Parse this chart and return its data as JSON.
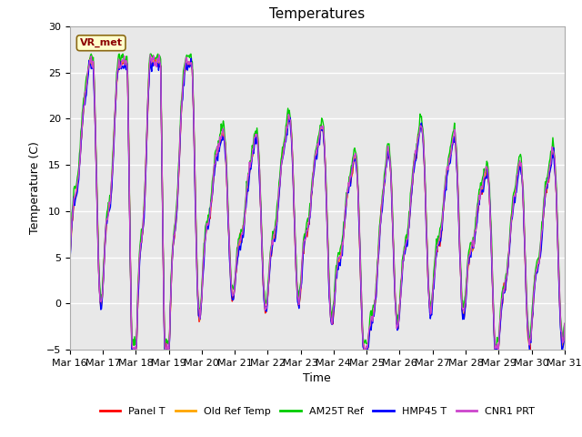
{
  "title": "Temperatures",
  "xlabel": "Time",
  "ylabel": "Temperature (C)",
  "ylim": [
    -5,
    30
  ],
  "annotation_text": "VR_met",
  "annotation_color": "#8B0000",
  "annotation_bg": "#FFFFCC",
  "annotation_edge": "#8B6914",
  "background_color": "#E8E8E8",
  "fig_bg": "#FFFFFF",
  "grid_color": "white",
  "series_names": [
    "Panel T",
    "Old Ref Temp",
    "AM25T Ref",
    "HMP45 T",
    "CNR1 PRT"
  ],
  "series_colors": [
    "#FF0000",
    "#FFA500",
    "#00CC00",
    "#0000FF",
    "#CC44CC"
  ],
  "series_lw": [
    1.0,
    1.0,
    1.0,
    1.0,
    1.0
  ],
  "xtick_labels": [
    "Mar 16",
    "Mar 17",
    "Mar 18",
    "Mar 19",
    "Mar 20",
    "Mar 21",
    "Mar 22",
    "Mar 23",
    "Mar 24",
    "Mar 25",
    "Mar 26",
    "Mar 27",
    "Mar 28",
    "Mar 29",
    "Mar 30",
    "Mar 31"
  ],
  "yticks": [
    -5,
    0,
    5,
    10,
    15,
    20,
    25,
    30
  ],
  "figsize": [
    6.4,
    4.8
  ],
  "dpi": 100
}
